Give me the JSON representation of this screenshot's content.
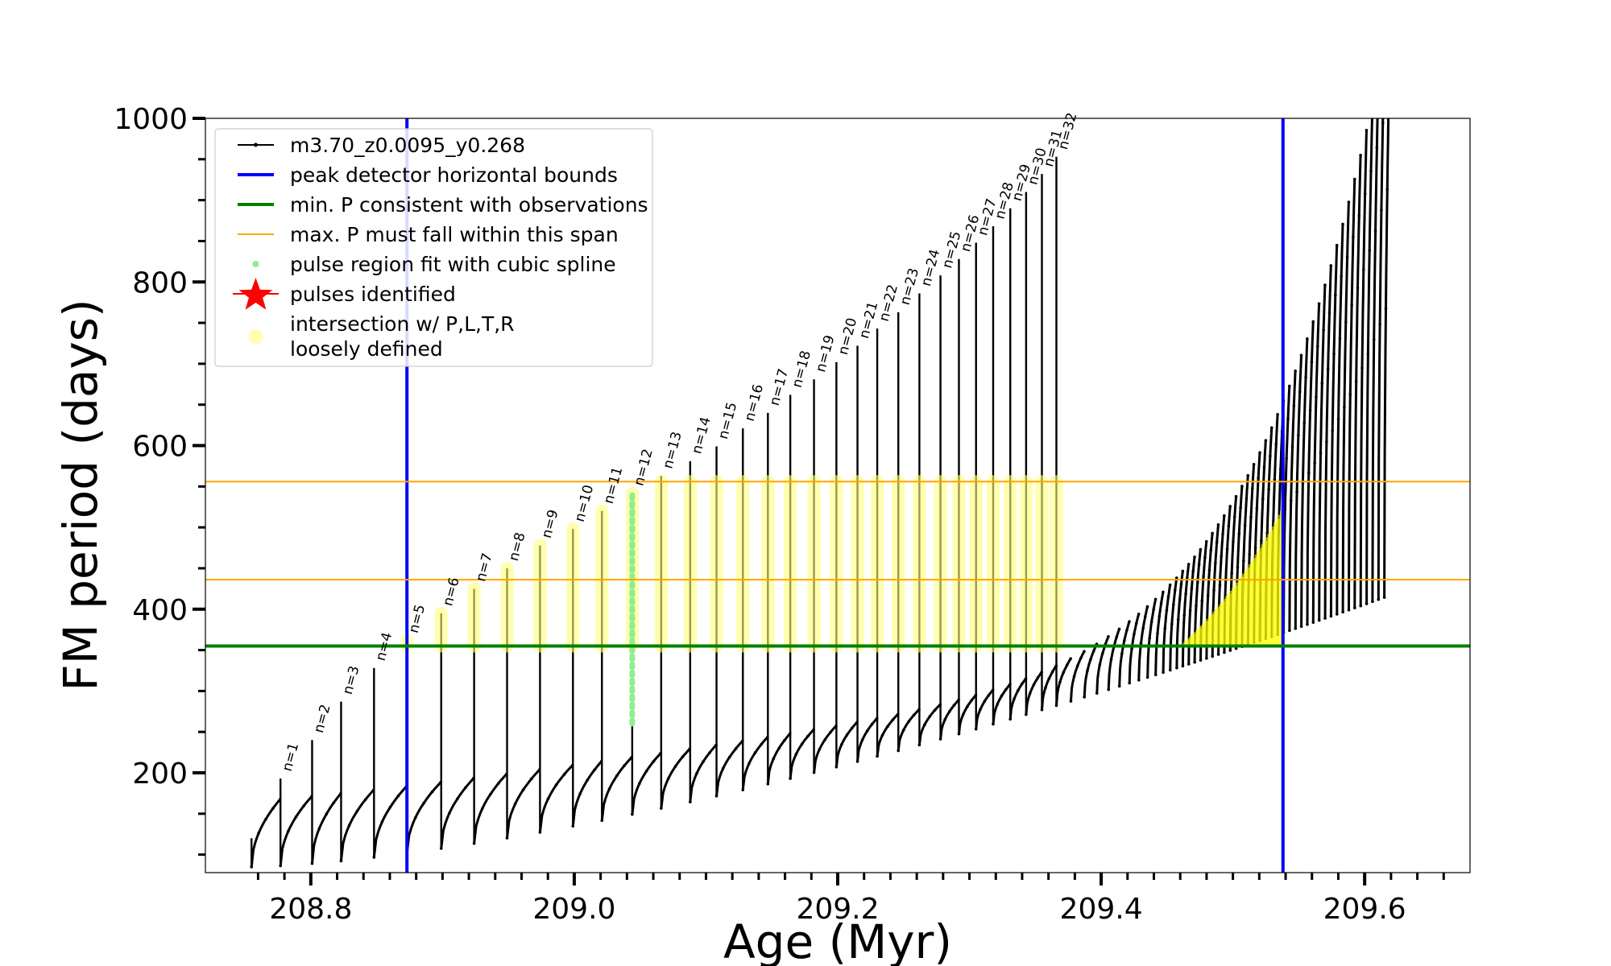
{
  "chart_data": {
    "type": "line",
    "xlabel": "Age (Myr)",
    "ylabel": "FM period (days)",
    "xlim": [
      208.72,
      209.68
    ],
    "ylim": [
      78,
      1000
    ],
    "xticks": [
      208.8,
      209.0,
      209.2,
      209.4,
      209.6
    ],
    "xtick_labels": [
      "208.8",
      "209.0",
      "209.2",
      "209.4",
      "209.6"
    ],
    "yticks": [
      200,
      400,
      600,
      800,
      1000
    ],
    "ytick_labels": [
      "200",
      "400",
      "600",
      "800",
      "1000"
    ],
    "minor_step_x": 0.02,
    "minor_step_y": 50,
    "grid": false,
    "legend_position": "top-left",
    "legend": [
      {
        "label": "m3.70_z0.0095_y0.268",
        "marker": "line-dot",
        "color": "#000000"
      },
      {
        "label": "peak detector horizontal bounds",
        "marker": "line",
        "color": "#0000ff"
      },
      {
        "label": "min. P consistent with observations",
        "marker": "line",
        "color": "#008000"
      },
      {
        "label": "max. P must fall within this span",
        "marker": "thin-line",
        "color": "#ffa500"
      },
      {
        "label": "pulse region fit with cubic spline",
        "marker": "dot",
        "color": "#90ee90"
      },
      {
        "label": "pulses identified",
        "marker": "star",
        "color": "#ff0000"
      },
      {
        "label": "intersection w/ P,L,T,R",
        "label_line2": "loosely defined",
        "marker": "circle",
        "color": "#ffff99"
      }
    ],
    "vertical_lines": [
      {
        "x": 208.873,
        "color": "#0000ff"
      },
      {
        "x": 209.538,
        "color": "#0000ff"
      }
    ],
    "horizontal_lines": [
      {
        "y": 355,
        "color": "#008000"
      },
      {
        "y": 436,
        "color": "#ffa500"
      },
      {
        "y": 556,
        "color": "#ffa500"
      }
    ],
    "series": [
      {
        "name": "m3.70_z0.0095_y0.268",
        "marker": "line-dot",
        "pulses": [
          {
            "n": 0,
            "age": 208.755,
            "period": 120
          },
          {
            "n": 1,
            "age": 208.777,
            "period": 193
          },
          {
            "n": 2,
            "age": 208.801,
            "period": 240
          },
          {
            "n": 3,
            "age": 208.823,
            "period": 287
          },
          {
            "n": 4,
            "age": 208.848,
            "period": 328
          },
          {
            "n": 5,
            "age": 208.873,
            "period": 362
          },
          {
            "n": 6,
            "age": 208.899,
            "period": 395
          },
          {
            "n": 7,
            "age": 208.924,
            "period": 425
          },
          {
            "n": 8,
            "age": 208.949,
            "period": 450
          },
          {
            "n": 9,
            "age": 208.974,
            "period": 478
          },
          {
            "n": 10,
            "age": 208.999,
            "period": 498
          },
          {
            "n": 11,
            "age": 209.021,
            "period": 520
          },
          {
            "n": 12,
            "age": 209.044,
            "period": 542
          },
          {
            "n": 13,
            "age": 209.066,
            "period": 563
          },
          {
            "n": 14,
            "age": 209.088,
            "period": 581
          },
          {
            "n": 15,
            "age": 209.108,
            "period": 599
          },
          {
            "n": 16,
            "age": 209.128,
            "period": 621
          },
          {
            "n": 17,
            "age": 209.147,
            "period": 640
          },
          {
            "n": 18,
            "age": 209.164,
            "period": 662
          },
          {
            "n": 19,
            "age": 209.182,
            "period": 681
          },
          {
            "n": 20,
            "age": 209.199,
            "period": 702
          },
          {
            "n": 21,
            "age": 209.215,
            "period": 722
          },
          {
            "n": 22,
            "age": 209.23,
            "period": 743
          },
          {
            "n": 23,
            "age": 209.246,
            "period": 763
          },
          {
            "n": 24,
            "age": 209.262,
            "period": 786
          },
          {
            "n": 25,
            "age": 209.278,
            "period": 808
          },
          {
            "n": 26,
            "age": 209.292,
            "period": 828
          },
          {
            "n": 27,
            "age": 209.305,
            "period": 848
          },
          {
            "n": 28,
            "age": 209.318,
            "period": 868
          },
          {
            "n": 29,
            "age": 209.331,
            "period": 890
          },
          {
            "n": 30,
            "age": 209.343,
            "period": 910
          },
          {
            "n": 31,
            "age": 209.355,
            "period": 932
          },
          {
            "n": 32,
            "age": 209.366,
            "period": 953
          }
        ]
      }
    ]
  }
}
